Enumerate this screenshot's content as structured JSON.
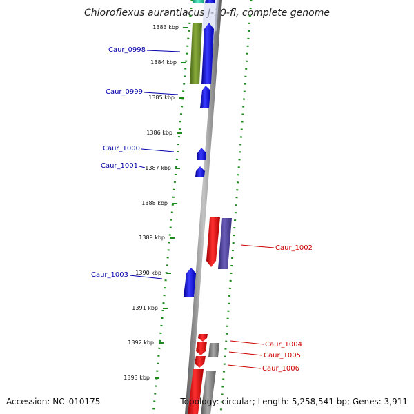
{
  "title": "Chloroflexus aurantiacus J-10-fl, complete genome",
  "footer": {
    "accession": "Accession: NC_010175",
    "summary": "Topology: circular; Length: 5,258,541 bp; Genes: 3,911"
  },
  "colors": {
    "backbone": "#7a7a7a",
    "ruler": "#1d8a1d",
    "forward_gene": "#0000e6",
    "reverse_gene": "#e60000",
    "olive_gene": "#6b8e23",
    "purple_gene": "#4b3d8f",
    "gray_gene": "#7f7f7f",
    "teal_gene": "#20c9a0",
    "forward_label": "#0000aa",
    "reverse_label": "#cc0000"
  },
  "ticks": [
    {
      "label": "1383 kbp"
    },
    {
      "label": "1384 kbp"
    },
    {
      "label": "1385 kbp"
    },
    {
      "label": "1386 kbp"
    },
    {
      "label": "1387 kbp"
    },
    {
      "label": "1388 kbp"
    },
    {
      "label": "1389 kbp"
    },
    {
      "label": "1390 kbp"
    },
    {
      "label": "1391 kbp"
    },
    {
      "label": "1392 kbp"
    },
    {
      "label": "1393 kbp"
    }
  ],
  "gene_labels": {
    "caur_0998": "Caur_0998",
    "caur_0999": "Caur_0999",
    "caur_1000": "Caur_1000",
    "caur_1001": "Caur_1001",
    "caur_1002": "Caur_1002",
    "caur_1003": "Caur_1003",
    "caur_1004": "Caur_1004",
    "caur_1005": "Caur_1005",
    "caur_1006": "Caur_1006"
  }
}
